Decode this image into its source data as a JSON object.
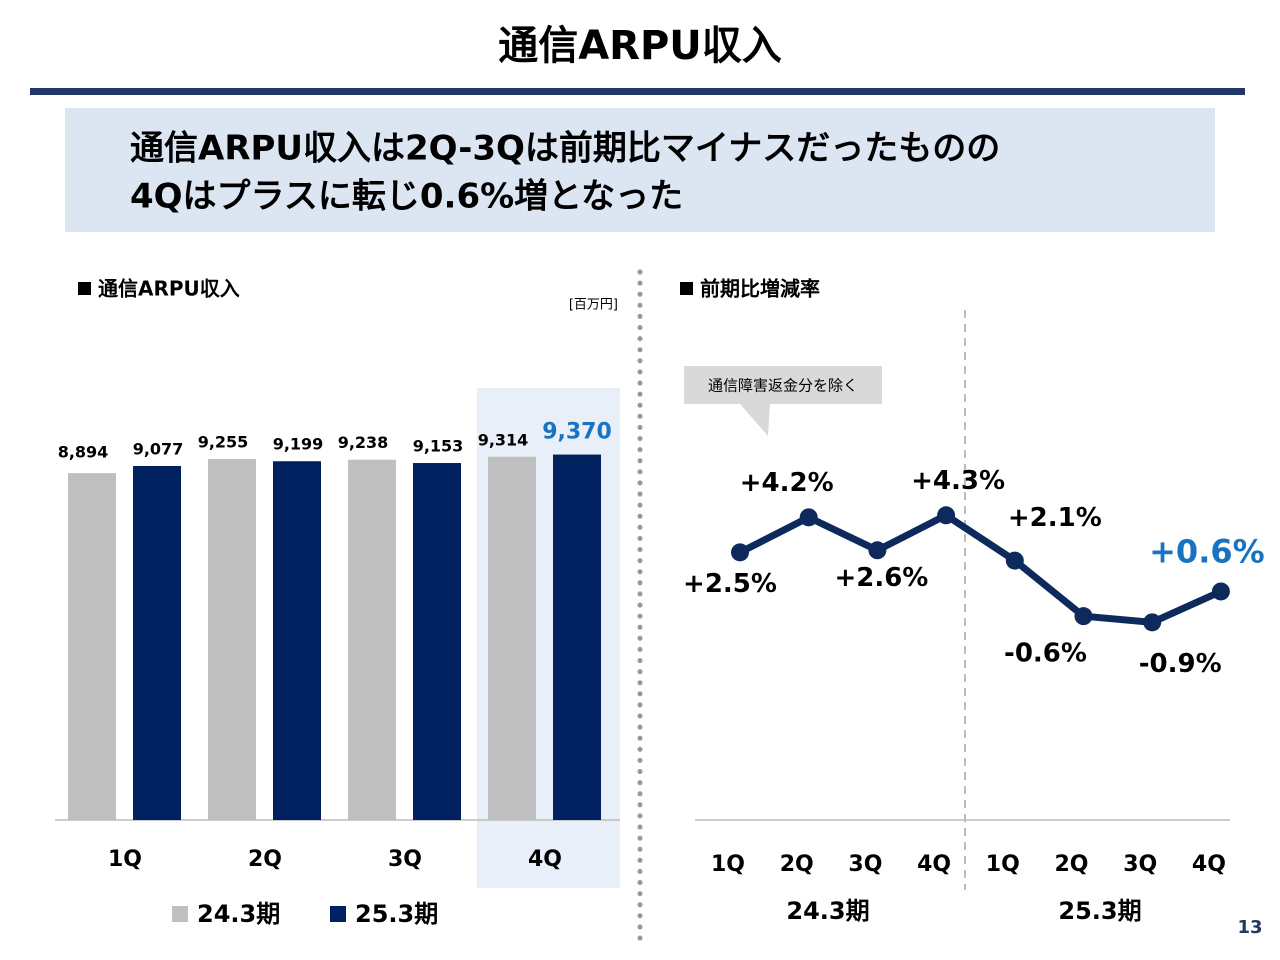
{
  "title": "通信ARPU収入",
  "headline": [
    "通信ARPU収入は2Q-3Qは前期比マイナスだったものの",
    "4Qはプラスに転じ0.6%増となった"
  ],
  "page_number": "13",
  "chart_data": [
    {
      "type": "bar",
      "title": "通信ARPU収入",
      "unit": "[百万円]",
      "categories": [
        "1Q",
        "2Q",
        "3Q",
        "4Q"
      ],
      "highlight": "4Q",
      "ylim": [
        0,
        10000
      ],
      "series": [
        {
          "name": "24.3期",
          "color": "#bfbfbf",
          "values": [
            8894,
            9255,
            9238,
            9314
          ],
          "value_labels": [
            "8,894",
            "9,255",
            "9,238",
            "9,314"
          ]
        },
        {
          "name": "25.3期",
          "color": "#002060",
          "values": [
            9077,
            9199,
            9153,
            9370
          ],
          "value_labels": [
            "9,077",
            "9,199",
            "9,153",
            "9,370"
          ]
        }
      ]
    },
    {
      "type": "line",
      "title": "前期比増減率",
      "annotation": "通信障害返金分を除く",
      "categories": [
        "1Q",
        "2Q",
        "3Q",
        "4Q",
        "1Q",
        "2Q",
        "3Q",
        "4Q"
      ],
      "groups": [
        "24.3期",
        "25.3期"
      ],
      "ylim": [
        -10.5,
        15
      ],
      "series": [
        {
          "color": "#0e2a5c",
          "values": [
            2.5,
            4.2,
            2.6,
            4.3,
            2.1,
            -0.6,
            -0.9,
            0.6
          ],
          "value_labels": [
            "+2.5%",
            "+4.2%",
            "+2.6%",
            "+4.3%",
            "+2.1%",
            "-0.6%",
            "-0.9%",
            "+0.6%"
          ]
        }
      ]
    }
  ]
}
